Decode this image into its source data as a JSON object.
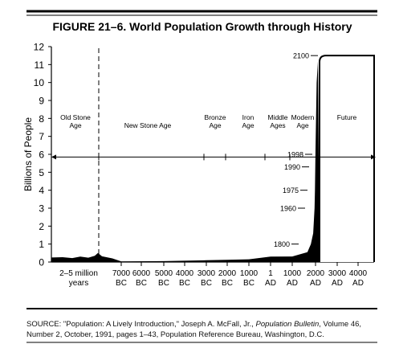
{
  "figure": {
    "title": "FIGURE 21–6. World Population Growth through History"
  },
  "source": {
    "prefix": "SOURCE: \"Population: A Lively Introduction,\" Joseph A. McFall, Jr., ",
    "journal": "Population Bulletin",
    "suffix": ", Volume 46, Number 2, October, 1991, pages 1–43, Population Reference Bureau, Washington, D.C."
  },
  "chart_data": {
    "type": "area",
    "title": "FIGURE 21–6. World Population Growth through History",
    "xlabel": "",
    "ylabel": "Billions of People",
    "ylim": [
      0,
      12
    ],
    "yticks": [
      0,
      1,
      2,
      3,
      4,
      5,
      6,
      7,
      8,
      9,
      10,
      11,
      12
    ],
    "xticks": [
      {
        "line1": "2–5 million",
        "line2": "years"
      },
      {
        "line1": "7000",
        "line2": "BC"
      },
      {
        "line1": "6000",
        "line2": "BC"
      },
      {
        "line1": "5000",
        "line2": "BC"
      },
      {
        "line1": "4000",
        "line2": "BC"
      },
      {
        "line1": "3000",
        "line2": "BC"
      },
      {
        "line1": "2000",
        "line2": "BC"
      },
      {
        "line1": "1000",
        "line2": "BC"
      },
      {
        "line1": "1",
        "line2": "AD"
      },
      {
        "line1": "1000",
        "line2": "AD"
      },
      {
        "line1": "2000",
        "line2": "AD"
      },
      {
        "line1": "3000",
        "line2": "AD"
      },
      {
        "line1": "4000",
        "line2": "AD"
      }
    ],
    "eras": [
      {
        "line1": "Old Stone",
        "line2": "Age"
      },
      {
        "line1": "New Stone Age",
        "line2": ""
      },
      {
        "line1": "Bronze",
        "line2": "Age"
      },
      {
        "line1": "Iron",
        "line2": "Age"
      },
      {
        "line1": "Middle",
        "line2": "Ages"
      },
      {
        "line1": "Modern",
        "line2": "Age"
      },
      {
        "line1": "Future",
        "line2": ""
      }
    ],
    "annotations": [
      {
        "label": "1800",
        "year": 1800,
        "value": 1.0
      },
      {
        "label": "1960",
        "year": 1960,
        "value": 3.0
      },
      {
        "label": "1975",
        "year": 1975,
        "value": 4.0
      },
      {
        "label": "1990",
        "year": 1990,
        "value": 5.3
      },
      {
        "label": "1998",
        "year": 1998,
        "value": 6.0
      },
      {
        "label": "2100",
        "year": 2100,
        "value": 11.5
      }
    ],
    "series": [
      {
        "values": [
          {
            "x": -9000,
            "y": 0.03
          },
          {
            "x": -7000,
            "y": 0.03
          },
          {
            "x": -5000,
            "y": 0.05
          },
          {
            "x": -3000,
            "y": 0.1
          },
          {
            "x": -2000,
            "y": 0.12
          },
          {
            "x": -1000,
            "y": 0.15
          },
          {
            "x": 1,
            "y": 0.3
          },
          {
            "x": 1000,
            "y": 0.31
          },
          {
            "x": 1650,
            "y": 0.55
          },
          {
            "x": 1800,
            "y": 1.0
          },
          {
            "x": 1900,
            "y": 1.6
          },
          {
            "x": 1960,
            "y": 3.0
          },
          {
            "x": 1975,
            "y": 4.0
          },
          {
            "x": 1990,
            "y": 5.3
          },
          {
            "x": 1998,
            "y": 6.0
          },
          {
            "x": 2050,
            "y": 10.0
          },
          {
            "x": 2100,
            "y": 11.5
          },
          {
            "x": 4500,
            "y": 11.5
          }
        ]
      }
    ],
    "grid": false,
    "legend": "none"
  }
}
